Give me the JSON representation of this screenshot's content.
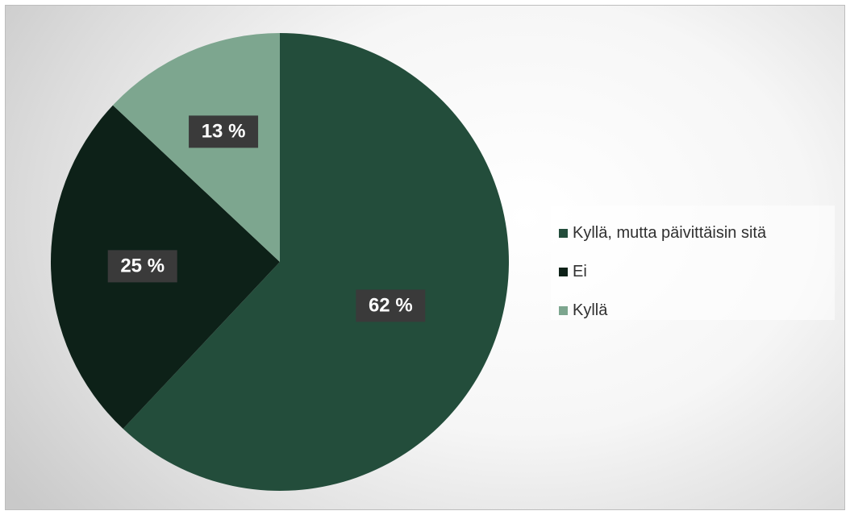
{
  "chart_data": {
    "type": "pie",
    "title": "",
    "slices": [
      {
        "name": "Kyllä, mutta päivittäisin sitä",
        "value": 62,
        "label": "62 %",
        "color": "#234d3b"
      },
      {
        "name": "Ei",
        "value": 25,
        "label": "25 %",
        "color": "#0d2118"
      },
      {
        "name": "Kyllä",
        "value": 13,
        "label": "13 %",
        "color": "#7da68f"
      }
    ],
    "legend_position": "right",
    "start_angle": "top",
    "direction": "clockwise"
  }
}
